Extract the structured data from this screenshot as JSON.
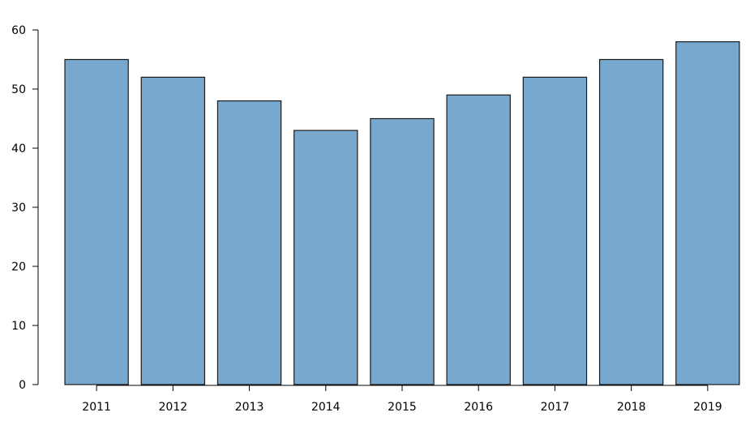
{
  "chart_data": {
    "type": "bar",
    "categories": [
      "2011",
      "2012",
      "2013",
      "2014",
      "2015",
      "2016",
      "2017",
      "2018",
      "2019"
    ],
    "values": [
      55,
      52,
      48,
      43,
      45,
      49,
      52,
      55,
      58
    ],
    "title": "",
    "xlabel": "",
    "ylabel": "",
    "ylim": [
      0,
      60
    ],
    "yticks": [
      0,
      10,
      20,
      30,
      40,
      50,
      60
    ],
    "grid": false,
    "legend": "none",
    "colors": {
      "bar_fill": "#78a8ce",
      "bar_stroke": "#1a1a1a",
      "axis": "#000000"
    }
  }
}
